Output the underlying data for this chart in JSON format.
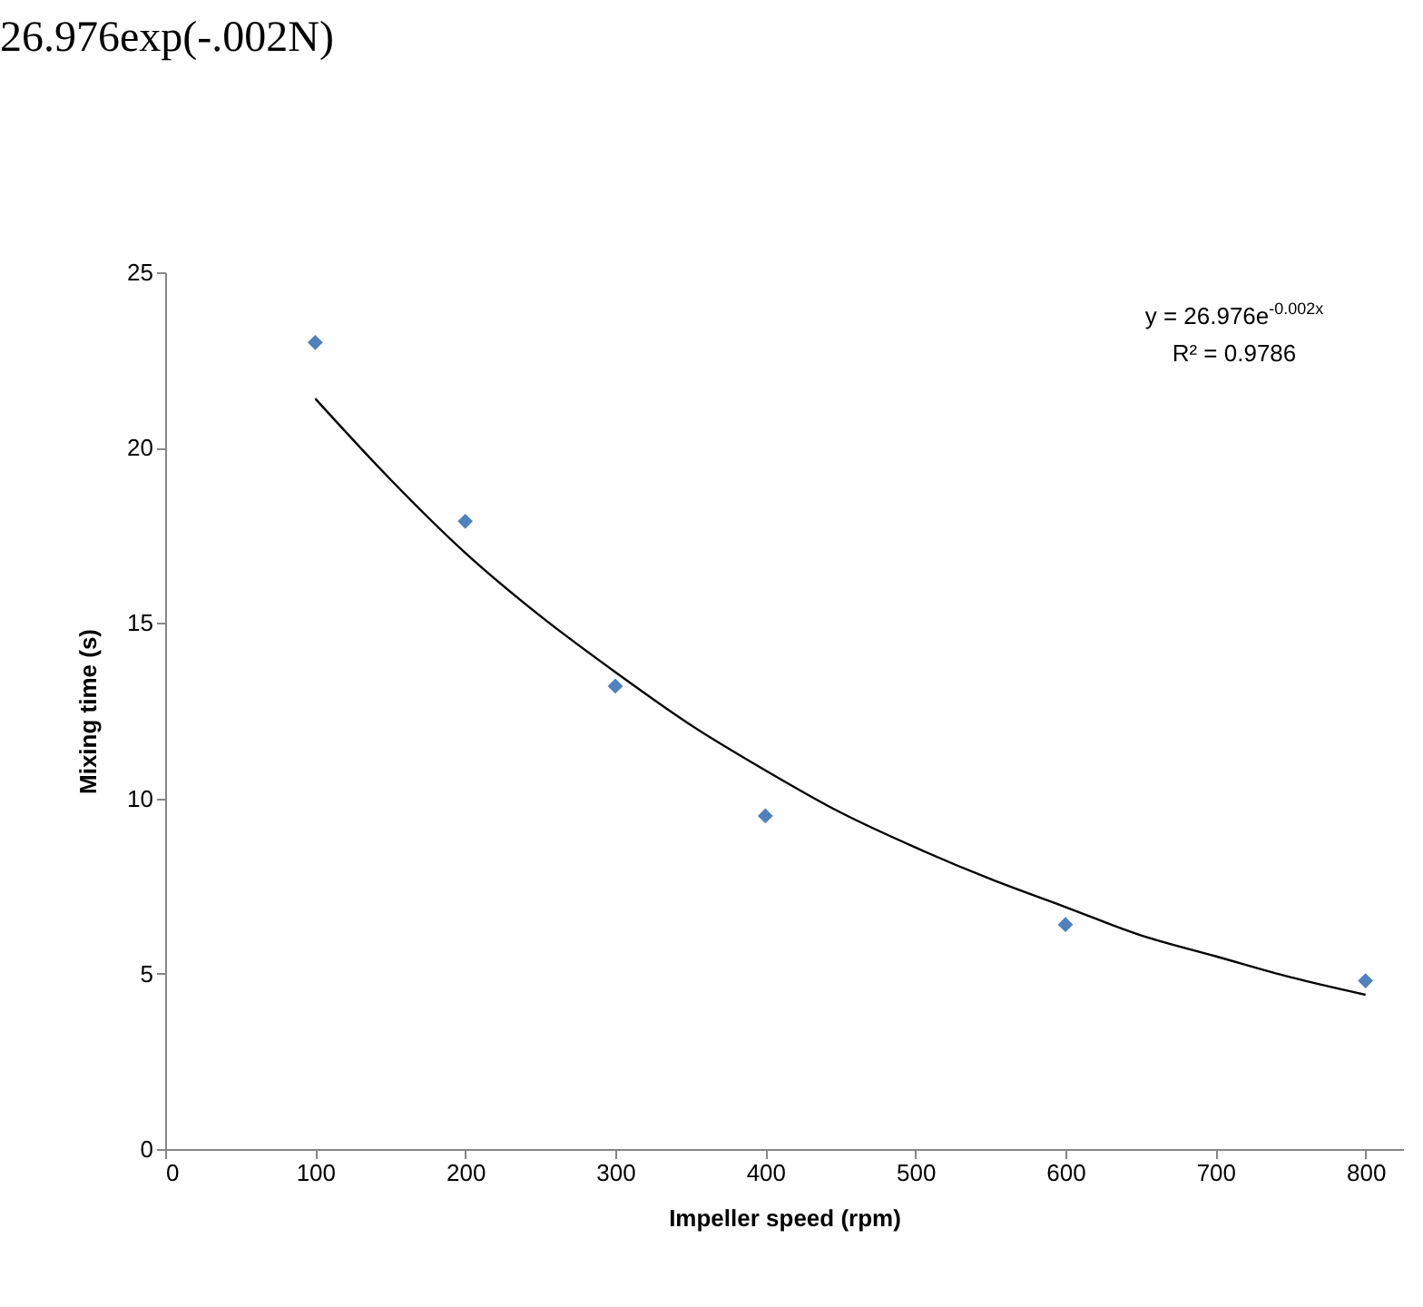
{
  "chart_data": {
    "type": "scatter",
    "xlabel": "Impeller speed (rpm)",
    "ylabel": "Mixing time (s)",
    "annotations": [
      "26.976exp(-.002N)",
      "y = 26.976e$^{-0.002x}$",
      "R² = 0.9786"
    ],
    "xlim": [
      0,
      825
    ],
    "xticks": [
      0,
      100,
      200,
      300,
      400,
      500,
      600,
      700,
      800
    ],
    "ylim": [
      0,
      25
    ],
    "yticks": [
      0,
      5,
      10,
      15,
      20,
      25
    ],
    "grid": false,
    "marker": "diamond",
    "series": [
      {
        "color": "#4f81bd",
        "x": [
          100,
          200,
          300,
          400,
          600,
          800
        ],
        "values": [
          23.0,
          17.9,
          13.2,
          9.5,
          6.4,
          4.8
        ]
      },
      {
        "type": "line",
        "color": "#000000",
        "line_style": "solid",
        "marker": "none",
        "x": [
          100,
          150,
          200,
          250,
          300,
          350,
          400,
          450,
          500,
          550,
          600,
          650,
          700,
          750,
          800
        ],
        "values": [
          21.4,
          19.1,
          17.0,
          15.2,
          13.6,
          12.1,
          10.8,
          9.6,
          8.6,
          7.7,
          6.9,
          6.1,
          5.5,
          4.9,
          4.4
        ]
      }
    ]
  }
}
